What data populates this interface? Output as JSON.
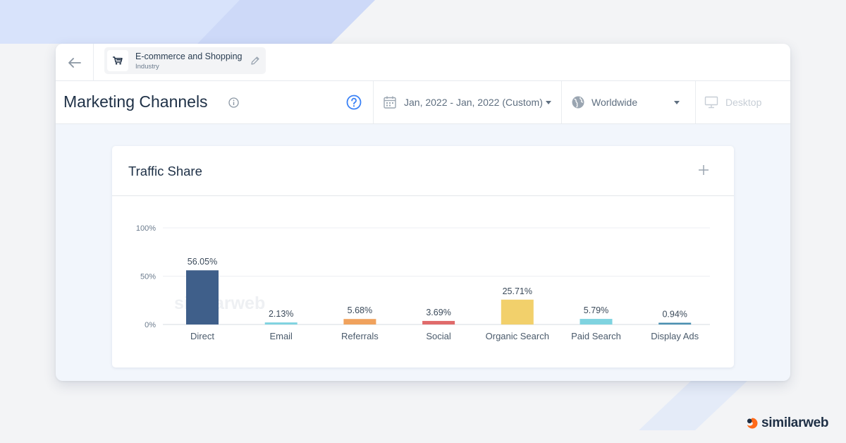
{
  "topbar": {
    "back_icon": "arrow-left-icon",
    "industry": {
      "icon": "shopping-cart-icon",
      "name": "E-commerce and Shopping",
      "type": "Industry"
    },
    "edit_icon": "pencil-icon"
  },
  "header": {
    "title": "Marketing Channels",
    "info_icon": "info-icon",
    "help_icon": "question-circle-icon",
    "date_range": "Jan, 2022 - Jan, 2022 (Custom)",
    "country": "Worldwide",
    "device": "Desktop"
  },
  "card": {
    "title": "Traffic Share",
    "add_icon": "plus-icon"
  },
  "chart_data": {
    "type": "bar",
    "title": "",
    "xlabel": "",
    "ylabel": "",
    "categories": [
      "Direct",
      "Email",
      "Referrals",
      "Social",
      "Organic Search",
      "Paid Search",
      "Display Ads"
    ],
    "values": [
      56.05,
      2.13,
      5.68,
      3.69,
      25.71,
      5.79,
      0.94
    ],
    "value_labels": [
      "56.05%",
      "2.13%",
      "5.68%",
      "3.69%",
      "25.71%",
      "5.79%",
      "0.94%"
    ],
    "colors": [
      "#3f5f8a",
      "#7fd3e0",
      "#f0a25d",
      "#e06b6b",
      "#f2d06b",
      "#7fd3e0",
      "#4a8fb0"
    ],
    "y_ticks": [
      "0%",
      "50%",
      "100%"
    ],
    "ylim": [
      0,
      100
    ],
    "grid": true,
    "watermark": "similarweb"
  },
  "brand": {
    "name": "similarweb",
    "colors": {
      "orange": "#ff6a1a",
      "dark": "#1e2f45"
    }
  },
  "colors": {
    "accent_blue": "#3b82f6",
    "title_text": "#1e3046"
  }
}
